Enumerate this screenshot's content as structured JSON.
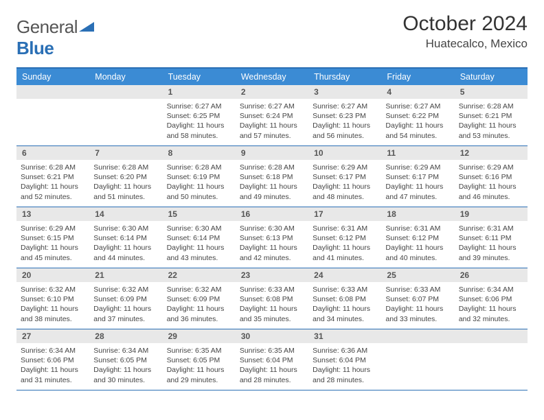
{
  "brand": {
    "word1": "General",
    "word2": "Blue"
  },
  "title": "October 2024",
  "location": "Huatecalco, Mexico",
  "colors": {
    "header_bg": "#3b8bd4",
    "header_text": "#ffffff",
    "rule": "#2a6fb5",
    "daynum_bg": "#e8e8e8",
    "daynum_text": "#555555",
    "body_text": "#444444",
    "page_bg": "#ffffff"
  },
  "dow": [
    "Sunday",
    "Monday",
    "Tuesday",
    "Wednesday",
    "Thursday",
    "Friday",
    "Saturday"
  ],
  "weeks": [
    [
      {
        "n": "",
        "empty": true
      },
      {
        "n": "",
        "empty": true
      },
      {
        "n": "1",
        "sunrise": "6:27 AM",
        "sunset": "6:25 PM",
        "daylight": "11 hours and 58 minutes."
      },
      {
        "n": "2",
        "sunrise": "6:27 AM",
        "sunset": "6:24 PM",
        "daylight": "11 hours and 57 minutes."
      },
      {
        "n": "3",
        "sunrise": "6:27 AM",
        "sunset": "6:23 PM",
        "daylight": "11 hours and 56 minutes."
      },
      {
        "n": "4",
        "sunrise": "6:27 AM",
        "sunset": "6:22 PM",
        "daylight": "11 hours and 54 minutes."
      },
      {
        "n": "5",
        "sunrise": "6:28 AM",
        "sunset": "6:21 PM",
        "daylight": "11 hours and 53 minutes."
      }
    ],
    [
      {
        "n": "6",
        "sunrise": "6:28 AM",
        "sunset": "6:21 PM",
        "daylight": "11 hours and 52 minutes."
      },
      {
        "n": "7",
        "sunrise": "6:28 AM",
        "sunset": "6:20 PM",
        "daylight": "11 hours and 51 minutes."
      },
      {
        "n": "8",
        "sunrise": "6:28 AM",
        "sunset": "6:19 PM",
        "daylight": "11 hours and 50 minutes."
      },
      {
        "n": "9",
        "sunrise": "6:28 AM",
        "sunset": "6:18 PM",
        "daylight": "11 hours and 49 minutes."
      },
      {
        "n": "10",
        "sunrise": "6:29 AM",
        "sunset": "6:17 PM",
        "daylight": "11 hours and 48 minutes."
      },
      {
        "n": "11",
        "sunrise": "6:29 AM",
        "sunset": "6:17 PM",
        "daylight": "11 hours and 47 minutes."
      },
      {
        "n": "12",
        "sunrise": "6:29 AM",
        "sunset": "6:16 PM",
        "daylight": "11 hours and 46 minutes."
      }
    ],
    [
      {
        "n": "13",
        "sunrise": "6:29 AM",
        "sunset": "6:15 PM",
        "daylight": "11 hours and 45 minutes."
      },
      {
        "n": "14",
        "sunrise": "6:30 AM",
        "sunset": "6:14 PM",
        "daylight": "11 hours and 44 minutes."
      },
      {
        "n": "15",
        "sunrise": "6:30 AM",
        "sunset": "6:14 PM",
        "daylight": "11 hours and 43 minutes."
      },
      {
        "n": "16",
        "sunrise": "6:30 AM",
        "sunset": "6:13 PM",
        "daylight": "11 hours and 42 minutes."
      },
      {
        "n": "17",
        "sunrise": "6:31 AM",
        "sunset": "6:12 PM",
        "daylight": "11 hours and 41 minutes."
      },
      {
        "n": "18",
        "sunrise": "6:31 AM",
        "sunset": "6:12 PM",
        "daylight": "11 hours and 40 minutes."
      },
      {
        "n": "19",
        "sunrise": "6:31 AM",
        "sunset": "6:11 PM",
        "daylight": "11 hours and 39 minutes."
      }
    ],
    [
      {
        "n": "20",
        "sunrise": "6:32 AM",
        "sunset": "6:10 PM",
        "daylight": "11 hours and 38 minutes."
      },
      {
        "n": "21",
        "sunrise": "6:32 AM",
        "sunset": "6:09 PM",
        "daylight": "11 hours and 37 minutes."
      },
      {
        "n": "22",
        "sunrise": "6:32 AM",
        "sunset": "6:09 PM",
        "daylight": "11 hours and 36 minutes."
      },
      {
        "n": "23",
        "sunrise": "6:33 AM",
        "sunset": "6:08 PM",
        "daylight": "11 hours and 35 minutes."
      },
      {
        "n": "24",
        "sunrise": "6:33 AM",
        "sunset": "6:08 PM",
        "daylight": "11 hours and 34 minutes."
      },
      {
        "n": "25",
        "sunrise": "6:33 AM",
        "sunset": "6:07 PM",
        "daylight": "11 hours and 33 minutes."
      },
      {
        "n": "26",
        "sunrise": "6:34 AM",
        "sunset": "6:06 PM",
        "daylight": "11 hours and 32 minutes."
      }
    ],
    [
      {
        "n": "27",
        "sunrise": "6:34 AM",
        "sunset": "6:06 PM",
        "daylight": "11 hours and 31 minutes."
      },
      {
        "n": "28",
        "sunrise": "6:34 AM",
        "sunset": "6:05 PM",
        "daylight": "11 hours and 30 minutes."
      },
      {
        "n": "29",
        "sunrise": "6:35 AM",
        "sunset": "6:05 PM",
        "daylight": "11 hours and 29 minutes."
      },
      {
        "n": "30",
        "sunrise": "6:35 AM",
        "sunset": "6:04 PM",
        "daylight": "11 hours and 28 minutes."
      },
      {
        "n": "31",
        "sunrise": "6:36 AM",
        "sunset": "6:04 PM",
        "daylight": "11 hours and 28 minutes."
      },
      {
        "n": "",
        "empty": true
      },
      {
        "n": "",
        "empty": true
      }
    ]
  ],
  "labels": {
    "sunrise": "Sunrise:",
    "sunset": "Sunset:",
    "daylight": "Daylight:"
  }
}
